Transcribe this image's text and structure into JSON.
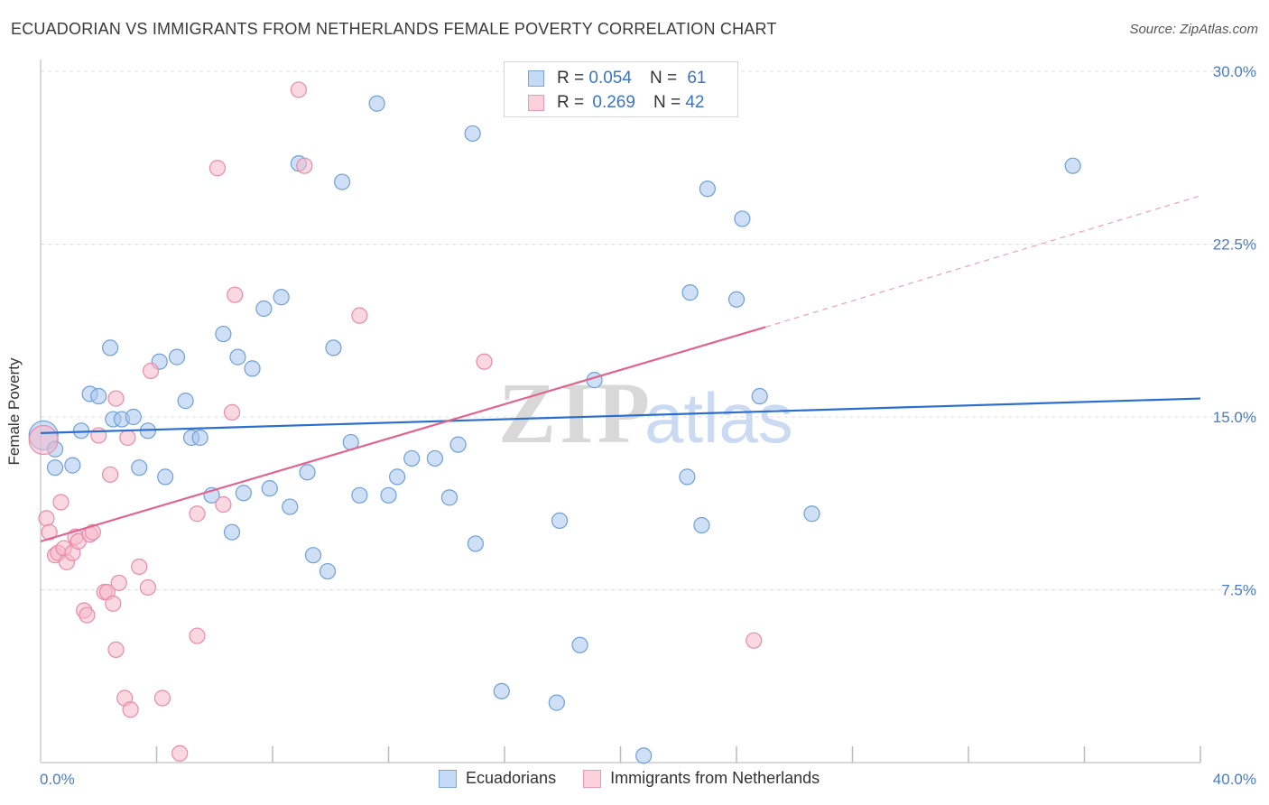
{
  "title": "ECUADORIAN VS IMMIGRANTS FROM NETHERLANDS FEMALE POVERTY CORRELATION CHART",
  "source": "Source: ZipAtlas.com",
  "watermark": {
    "zip": "ZIP",
    "atlas": "atlas"
  },
  "legend_top": {
    "rows": [
      {
        "r_label": "R =",
        "r_value": "0.054",
        "n_label": "N =",
        "n_value": "61"
      },
      {
        "r_label": "R =",
        "r_value": "0.269",
        "n_label": "N =",
        "n_value": "42"
      }
    ]
  },
  "chart_data": {
    "type": "scatter",
    "title": "ECUADORIAN VS IMMIGRANTS FROM NETHERLANDS FEMALE POVERTY CORRELATION CHART",
    "xlabel": "",
    "ylabel": "Female Poverty",
    "xlim": [
      0,
      40
    ],
    "ylim": [
      0,
      30
    ],
    "x_tick_labels": [
      "0.0%",
      "40.0%"
    ],
    "y_tick_labels": [
      "7.5%",
      "15.0%",
      "22.5%",
      "30.0%"
    ],
    "y_ticks": [
      7.5,
      15.0,
      22.5,
      30.0
    ],
    "grid": true,
    "legend_position": "bottom",
    "series": [
      {
        "name": "Ecuadorians",
        "color": "#a7c6ef",
        "stroke": "#6f9fd8",
        "trend_color": "#2b6fce",
        "trend": {
          "x0": 0,
          "y0": 14.3,
          "x1": 40,
          "y1": 15.8
        },
        "points": [
          [
            0.1,
            14.2
          ],
          [
            0.5,
            13.6
          ],
          [
            0.5,
            12.8
          ],
          [
            1.1,
            12.9
          ],
          [
            1.4,
            14.4
          ],
          [
            1.7,
            16.0
          ],
          [
            2.0,
            15.9
          ],
          [
            2.4,
            18.0
          ],
          [
            2.5,
            14.9
          ],
          [
            2.8,
            14.9
          ],
          [
            3.2,
            15.0
          ],
          [
            3.4,
            12.8
          ],
          [
            3.7,
            14.4
          ],
          [
            4.1,
            17.4
          ],
          [
            4.3,
            12.4
          ],
          [
            4.7,
            17.6
          ],
          [
            5.0,
            15.7
          ],
          [
            5.2,
            14.1
          ],
          [
            5.5,
            14.1
          ],
          [
            5.9,
            11.6
          ],
          [
            6.3,
            18.6
          ],
          [
            6.6,
            10.0
          ],
          [
            6.8,
            17.6
          ],
          [
            7.0,
            11.7
          ],
          [
            7.3,
            17.1
          ],
          [
            7.7,
            19.7
          ],
          [
            7.9,
            11.9
          ],
          [
            8.3,
            20.2
          ],
          [
            8.6,
            11.1
          ],
          [
            8.9,
            26.0
          ],
          [
            9.2,
            12.6
          ],
          [
            9.4,
            9.0
          ],
          [
            9.9,
            8.3
          ],
          [
            10.1,
            18.0
          ],
          [
            10.4,
            25.2
          ],
          [
            10.7,
            13.9
          ],
          [
            11.0,
            11.6
          ],
          [
            11.6,
            28.6
          ],
          [
            12.0,
            11.6
          ],
          [
            12.3,
            12.4
          ],
          [
            12.8,
            13.2
          ],
          [
            13.6,
            13.2
          ],
          [
            14.1,
            11.5
          ],
          [
            14.4,
            13.8
          ],
          [
            14.9,
            27.3
          ],
          [
            15.0,
            9.5
          ],
          [
            15.9,
            3.1
          ],
          [
            17.8,
            2.6
          ],
          [
            17.9,
            10.5
          ],
          [
            18.6,
            5.1
          ],
          [
            19.1,
            16.6
          ],
          [
            20.8,
            0.3
          ],
          [
            22.3,
            12.4
          ],
          [
            22.4,
            20.4
          ],
          [
            22.8,
            10.3
          ],
          [
            23.0,
            24.9
          ],
          [
            24.0,
            20.1
          ],
          [
            24.2,
            23.6
          ],
          [
            24.8,
            15.9
          ],
          [
            26.6,
            10.8
          ],
          [
            35.6,
            25.9
          ]
        ]
      },
      {
        "name": "Immigrants from Netherlands",
        "color": "#f5b8cb",
        "stroke": "#e98aa9",
        "trend_color": "#e0648e",
        "trend": {
          "x0": 0,
          "y0": 9.6,
          "x1": 25,
          "y1": 18.9
        },
        "trend_dashed": {
          "x0": 25,
          "y0": 18.9,
          "x1": 40,
          "y1": 24.6
        },
        "points": [
          [
            0.1,
            14.0
          ],
          [
            0.2,
            10.6
          ],
          [
            0.3,
            10.0
          ],
          [
            0.5,
            9.0
          ],
          [
            0.6,
            9.1
          ],
          [
            0.7,
            11.3
          ],
          [
            0.8,
            9.3
          ],
          [
            0.9,
            8.7
          ],
          [
            1.1,
            9.1
          ],
          [
            1.2,
            9.8
          ],
          [
            1.3,
            9.6
          ],
          [
            1.5,
            6.6
          ],
          [
            1.6,
            6.4
          ],
          [
            1.7,
            9.9
          ],
          [
            1.8,
            10.0
          ],
          [
            2.0,
            14.2
          ],
          [
            2.2,
            7.4
          ],
          [
            2.3,
            7.4
          ],
          [
            2.4,
            12.5
          ],
          [
            2.5,
            6.9
          ],
          [
            2.6,
            15.8
          ],
          [
            2.6,
            4.9
          ],
          [
            2.7,
            7.8
          ],
          [
            2.9,
            2.8
          ],
          [
            3.0,
            14.1
          ],
          [
            3.1,
            2.3
          ],
          [
            3.4,
            8.5
          ],
          [
            3.7,
            7.6
          ],
          [
            3.8,
            17.0
          ],
          [
            4.2,
            2.8
          ],
          [
            4.8,
            0.4
          ],
          [
            5.4,
            5.5
          ],
          [
            5.4,
            10.8
          ],
          [
            6.1,
            25.8
          ],
          [
            6.3,
            11.2
          ],
          [
            6.6,
            15.2
          ],
          [
            6.7,
            20.3
          ],
          [
            8.9,
            29.2
          ],
          [
            9.1,
            25.9
          ],
          [
            11.0,
            19.4
          ],
          [
            15.3,
            17.4
          ],
          [
            24.6,
            5.3
          ]
        ]
      }
    ]
  }
}
